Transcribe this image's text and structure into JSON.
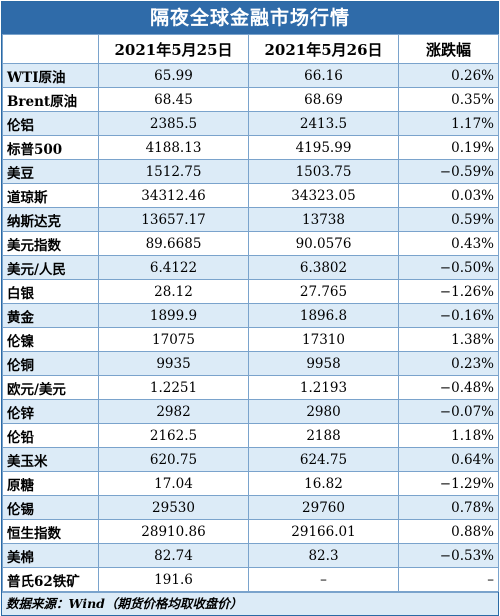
{
  "title": "隔夜全球金融市场行情",
  "columns": [
    "",
    "2021年5月25日",
    "2021年5月26日",
    "涨跌幅"
  ],
  "rows": [
    {
      "name": "WTI原油",
      "d1": "65.99",
      "d2": "66.16",
      "chg": "0.26%"
    },
    {
      "name": "Brent原油",
      "d1": "68.45",
      "d2": "68.69",
      "chg": "0.35%"
    },
    {
      "name": "伦铝",
      "d1": "2385.5",
      "d2": "2413.5",
      "chg": "1.17%"
    },
    {
      "name": "标普500",
      "d1": "4188.13",
      "d2": "4195.99",
      "chg": "0.19%"
    },
    {
      "name": "美豆",
      "d1": "1512.75",
      "d2": "1503.75",
      "chg": "−0.59%"
    },
    {
      "name": "道琼斯",
      "d1": "34312.46",
      "d2": "34323.05",
      "chg": "0.03%"
    },
    {
      "name": "纳斯达克",
      "d1": "13657.17",
      "d2": "13738",
      "chg": "0.59%"
    },
    {
      "name": "美元指数",
      "d1": "89.6685",
      "d2": "90.0576",
      "chg": "0.43%"
    },
    {
      "name": "美元/人民",
      "d1": "6.4122",
      "d2": "6.3802",
      "chg": "−0.50%"
    },
    {
      "name": "白银",
      "d1": "28.12",
      "d2": "27.765",
      "chg": "−1.26%"
    },
    {
      "name": "黄金",
      "d1": "1899.9",
      "d2": "1896.8",
      "chg": "−0.16%"
    },
    {
      "name": "伦镍",
      "d1": "17075",
      "d2": "17310",
      "chg": "1.38%"
    },
    {
      "name": "伦铜",
      "d1": "9935",
      "d2": "9958",
      "chg": "0.23%"
    },
    {
      "name": "欧元/美元",
      "d1": "1.2251",
      "d2": "1.2193",
      "chg": "−0.48%"
    },
    {
      "name": "伦锌",
      "d1": "2982",
      "d2": "2980",
      "chg": "−0.07%"
    },
    {
      "name": "伦铅",
      "d1": "2162.5",
      "d2": "2188",
      "chg": "1.18%"
    },
    {
      "name": "美玉米",
      "d1": "620.75",
      "d2": "624.75",
      "chg": "0.64%"
    },
    {
      "name": "原糖",
      "d1": "17.04",
      "d2": "16.82",
      "chg": "−1.29%"
    },
    {
      "name": "伦锡",
      "d1": "29530",
      "d2": "29760",
      "chg": "0.78%"
    },
    {
      "name": "恒生指数",
      "d1": "28910.86",
      "d2": "29166.01",
      "chg": "0.88%"
    },
    {
      "name": "美棉",
      "d1": "82.74",
      "d2": "82.3",
      "chg": "−0.53%"
    },
    {
      "name": "普氏62铁矿",
      "d1": "191.6",
      "d2": "–",
      "chg": "–"
    }
  ],
  "source": "数据来源：Wind（期货价格均取收盘价）"
}
